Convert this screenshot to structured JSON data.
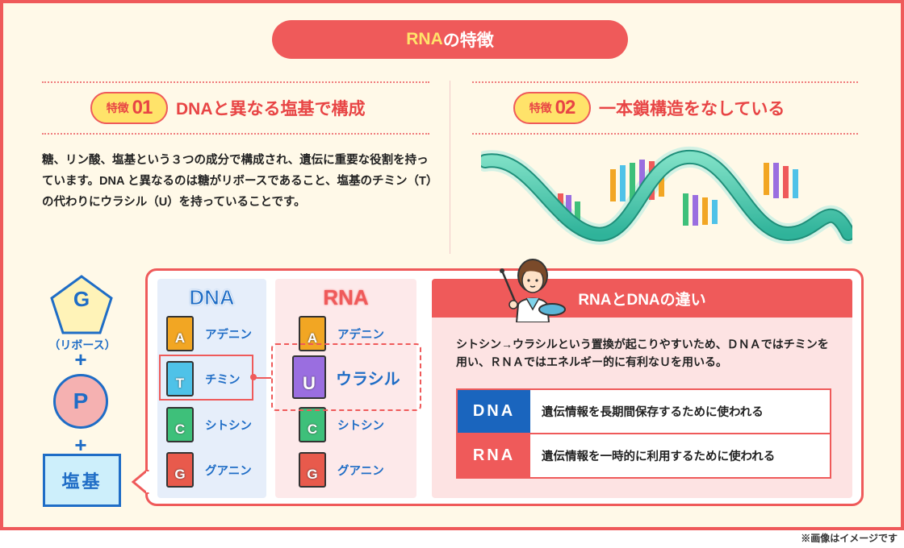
{
  "title": {
    "highlight": "RNA",
    "rest": "の特徴"
  },
  "features": [
    {
      "badge_word": "特徴",
      "badge_num": "01",
      "title": "DNAと異なる塩基で構成"
    },
    {
      "badge_word": "特徴",
      "badge_num": "02",
      "title": "一本鎖構造をなしている"
    }
  ],
  "feature1_text": "糖、リン酸、塩基という３つの成分で構成され、遺伝に重要な役割を持っています。DNA と異なるのは糖がリボースであること、塩基のチミン（T）の代わりにウラシル（U）を持っていることです。",
  "components": {
    "sugar_letter": "G",
    "sugar_name": "（リボース）",
    "plus": "+",
    "phosphate_letter": "P",
    "base_label": "塩基"
  },
  "dna_column": {
    "title": "DNA",
    "bases": [
      {
        "letter": "A",
        "name": "アデニン"
      },
      {
        "letter": "T",
        "name": "チミン"
      },
      {
        "letter": "C",
        "name": "シトシン"
      },
      {
        "letter": "G",
        "name": "グアニン"
      }
    ]
  },
  "rna_column": {
    "title": "RNA",
    "bases": [
      {
        "letter": "A",
        "name": "アデニン"
      },
      {
        "letter": "U",
        "name": "ウラシル"
      },
      {
        "letter": "C",
        "name": "シトシン"
      },
      {
        "letter": "G",
        "name": "グアニン"
      }
    ]
  },
  "difference": {
    "heading": "RNAとDNAの違い",
    "description": "シトシン→ウラシルという置換が起こりやすいため、ＤＮＡではチミンを用い、ＲＮＡではエネルギー的に有利なＵを用いる。",
    "rows": [
      {
        "key": "DNA",
        "value": "遺伝情報を長期間保存するために使われる",
        "color": "#1a65be"
      },
      {
        "key": "RNA",
        "value": "遺伝情報を一時的に利用するために使われる",
        "color": "#ef5a5a"
      }
    ]
  },
  "footnote": "※画像はイメージです",
  "colors": {
    "accent": "#ef5a5a",
    "blue": "#1f6dc6",
    "yellow": "#ffe36a",
    "background": "#fff9e8"
  }
}
